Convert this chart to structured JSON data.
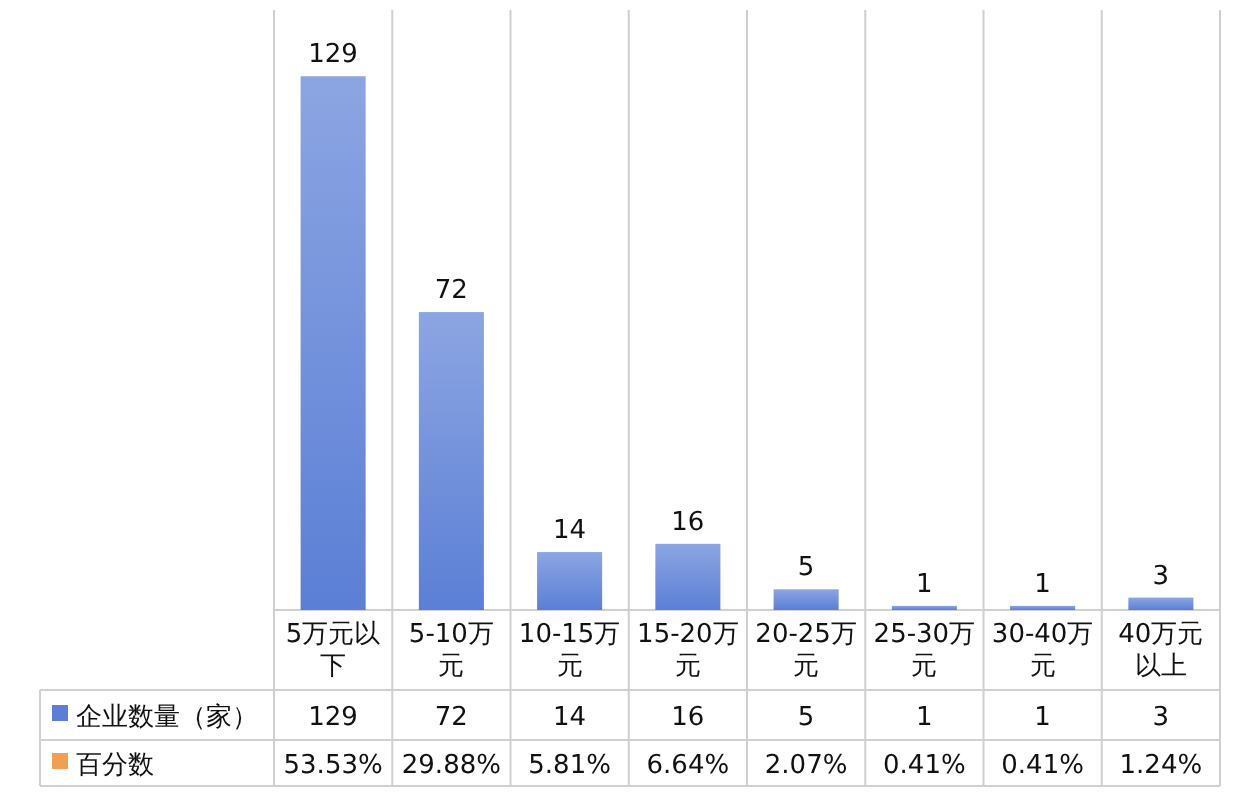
{
  "chart_data": {
    "type": "bar",
    "categories": [
      "5万元以下",
      "5-10万元",
      "10-15万元",
      "15-20万元",
      "20-25万元",
      "25-30万元",
      "30-40万元",
      "40万元以上"
    ],
    "series": [
      {
        "name": "企业数量（家）",
        "color": "#5b7fd6",
        "values": [
          129,
          72,
          14,
          16,
          5,
          1,
          1,
          3
        ],
        "value_labels": [
          "129",
          "72",
          "14",
          "16",
          "5",
          "1",
          "1",
          "3"
        ]
      },
      {
        "name": "百分数",
        "color": "#f0a050",
        "values": [
          null,
          null,
          null,
          null,
          null,
          null,
          null,
          null
        ],
        "value_labels": [
          "53.53%",
          "29.88%",
          "5.81%",
          "6.64%",
          "2.07%",
          "0.41%",
          "0.41%",
          "1.24%"
        ]
      }
    ],
    "ylim": [
      0,
      145
    ],
    "data_labels": true,
    "legend": "bottom left"
  }
}
